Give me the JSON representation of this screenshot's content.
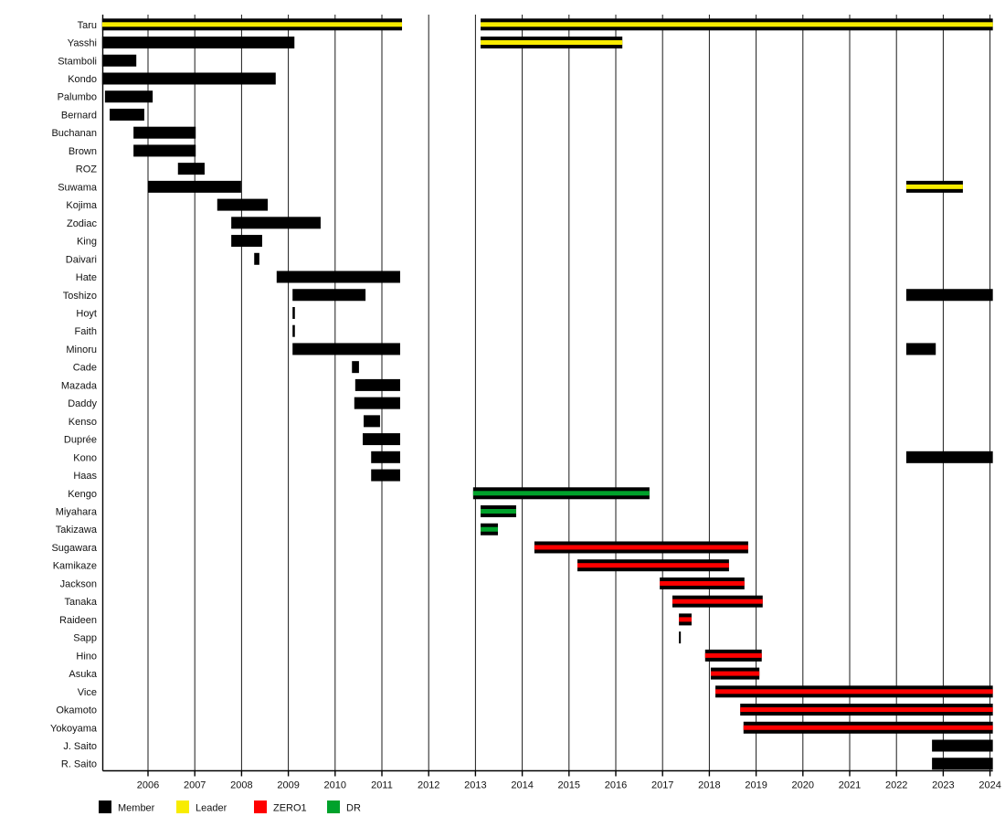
{
  "page": {
    "background": "#ffffff"
  },
  "colors": {
    "member": "#000000",
    "leader": "#f8ec00",
    "zero1": "#ff0000",
    "dr": "#00a22b",
    "axis": "#000000",
    "grid": "#1a1a1a",
    "background": "#ffffff"
  },
  "legend": {
    "position": "bottom-left",
    "items": [
      {
        "label": "Member",
        "type": "member"
      },
      {
        "label": "Leader",
        "type": "leader"
      },
      {
        "label": "ZERO1",
        "type": "zero1"
      },
      {
        "label": "DR",
        "type": "dr"
      }
    ]
  },
  "chart_data": {
    "type": "bar",
    "variant": "gantt-membership-timeline",
    "title": "",
    "xlabel": "",
    "ylabel": "",
    "grid": true,
    "x_axis": {
      "min": 2005.02,
      "max": 2024.06,
      "tick_years": [
        2006,
        2007,
        2008,
        2009,
        2010,
        2011,
        2012,
        2013,
        2014,
        2015,
        2016,
        2017,
        2018,
        2019,
        2020,
        2021,
        2022,
        2023,
        2024
      ]
    },
    "categories": [
      "Taru",
      "Yasshi",
      "Stamboli",
      "Kondo",
      "Palumbo",
      "Bernard",
      "Buchanan",
      "Brown",
      "ROZ",
      "Suwama",
      "Kojima",
      "Zodiac",
      "King",
      "Daivari",
      "Hate",
      "Toshizo",
      "Hoyt",
      "Faith",
      "Minoru",
      "Cade",
      "Mazada",
      "Daddy",
      "Kenso",
      "Duprée",
      "Kono",
      "Haas",
      "Kengo",
      "Miyahara",
      "Takizawa",
      "Sugawara",
      "Kamikaze",
      "Jackson",
      "Tanaka",
      "Raideen",
      "Sapp",
      "Hino",
      "Asuka",
      "Vice",
      "Okamoto",
      "Yokoyama",
      "J. Saito",
      "R. Saito"
    ],
    "rows": [
      {
        "name": "Taru",
        "segments": [
          {
            "start": 2005.02,
            "end": 2011.43,
            "type": "leader"
          },
          {
            "start": 2013.11,
            "end": 2024.06,
            "type": "leader"
          }
        ]
      },
      {
        "name": "Yasshi",
        "segments": [
          {
            "start": 2005.02,
            "end": 2009.13,
            "type": "member"
          },
          {
            "start": 2013.11,
            "end": 2016.14,
            "type": "leader"
          }
        ]
      },
      {
        "name": "Stamboli",
        "segments": [
          {
            "start": 2005.02,
            "end": 2005.75,
            "type": "member"
          }
        ]
      },
      {
        "name": "Kondo",
        "segments": [
          {
            "start": 2005.02,
            "end": 2008.73,
            "type": "member"
          }
        ]
      },
      {
        "name": "Palumbo",
        "segments": [
          {
            "start": 2005.08,
            "end": 2006.1,
            "type": "member"
          }
        ]
      },
      {
        "name": "Bernard",
        "segments": [
          {
            "start": 2005.18,
            "end": 2005.92,
            "type": "member"
          }
        ]
      },
      {
        "name": "Buchanan",
        "segments": [
          {
            "start": 2005.69,
            "end": 2007.02,
            "type": "member"
          }
        ]
      },
      {
        "name": "Brown",
        "segments": [
          {
            "start": 2005.69,
            "end": 2007.02,
            "type": "member"
          }
        ]
      },
      {
        "name": "ROZ",
        "segments": [
          {
            "start": 2006.64,
            "end": 2007.21,
            "type": "member"
          }
        ]
      },
      {
        "name": "Suwama",
        "segments": [
          {
            "start": 2006.0,
            "end": 2007.99,
            "type": "member"
          },
          {
            "start": 2022.21,
            "end": 2023.42,
            "type": "leader"
          }
        ]
      },
      {
        "name": "Kojima",
        "segments": [
          {
            "start": 2007.48,
            "end": 2008.56,
            "type": "member"
          }
        ]
      },
      {
        "name": "Zodiac",
        "segments": [
          {
            "start": 2007.78,
            "end": 2009.69,
            "type": "member"
          }
        ]
      },
      {
        "name": "King",
        "segments": [
          {
            "start": 2007.78,
            "end": 2008.44,
            "type": "member"
          }
        ]
      },
      {
        "name": "Daivari",
        "segments": [
          {
            "start": 2008.27,
            "end": 2008.38,
            "type": "member"
          }
        ]
      },
      {
        "name": "Hate",
        "segments": [
          {
            "start": 2008.75,
            "end": 2011.39,
            "type": "member"
          }
        ]
      },
      {
        "name": "Toshizo",
        "segments": [
          {
            "start": 2009.09,
            "end": 2010.65,
            "type": "member"
          },
          {
            "start": 2022.21,
            "end": 2024.06,
            "type": "member"
          }
        ]
      },
      {
        "name": "Hoyt",
        "segments": [
          {
            "start": 2009.09,
            "end": 2009.14,
            "type": "member"
          }
        ]
      },
      {
        "name": "Faith",
        "segments": [
          {
            "start": 2009.09,
            "end": 2009.14,
            "type": "member"
          }
        ]
      },
      {
        "name": "Minoru",
        "segments": [
          {
            "start": 2009.09,
            "end": 2011.39,
            "type": "member"
          },
          {
            "start": 2022.21,
            "end": 2022.84,
            "type": "member"
          }
        ]
      },
      {
        "name": "Cade",
        "segments": [
          {
            "start": 2010.36,
            "end": 2010.51,
            "type": "member"
          }
        ]
      },
      {
        "name": "Mazada",
        "segments": [
          {
            "start": 2010.43,
            "end": 2011.39,
            "type": "member"
          }
        ]
      },
      {
        "name": "Daddy",
        "segments": [
          {
            "start": 2010.41,
            "end": 2011.39,
            "type": "member"
          }
        ]
      },
      {
        "name": "Kenso",
        "segments": [
          {
            "start": 2010.61,
            "end": 2010.96,
            "type": "member"
          }
        ]
      },
      {
        "name": "Duprée",
        "segments": [
          {
            "start": 2010.59,
            "end": 2011.39,
            "type": "member"
          }
        ]
      },
      {
        "name": "Kono",
        "segments": [
          {
            "start": 2010.77,
            "end": 2011.39,
            "type": "member"
          },
          {
            "start": 2022.21,
            "end": 2024.06,
            "type": "member"
          }
        ]
      },
      {
        "name": "Haas",
        "segments": [
          {
            "start": 2010.77,
            "end": 2011.39,
            "type": "member"
          }
        ]
      },
      {
        "name": "Kengo",
        "segments": [
          {
            "start": 2012.95,
            "end": 2016.72,
            "type": "dr"
          }
        ]
      },
      {
        "name": "Miyahara",
        "segments": [
          {
            "start": 2013.11,
            "end": 2013.87,
            "type": "dr"
          }
        ]
      },
      {
        "name": "Takizawa",
        "segments": [
          {
            "start": 2013.11,
            "end": 2013.48,
            "type": "dr"
          }
        ]
      },
      {
        "name": "Sugawara",
        "segments": [
          {
            "start": 2014.26,
            "end": 2018.83,
            "type": "zero1"
          }
        ]
      },
      {
        "name": "Kamikaze",
        "segments": [
          {
            "start": 2015.18,
            "end": 2018.42,
            "type": "zero1"
          }
        ]
      },
      {
        "name": "Jackson",
        "segments": [
          {
            "start": 2016.94,
            "end": 2018.75,
            "type": "zero1"
          }
        ]
      },
      {
        "name": "Tanaka",
        "segments": [
          {
            "start": 2017.21,
            "end": 2019.14,
            "type": "zero1"
          }
        ]
      },
      {
        "name": "Raideen",
        "segments": [
          {
            "start": 2017.35,
            "end": 2017.62,
            "type": "zero1"
          }
        ]
      },
      {
        "name": "Sapp",
        "segments": [
          {
            "start": 2017.35,
            "end": 2017.39,
            "type": "member"
          }
        ]
      },
      {
        "name": "Hino",
        "segments": [
          {
            "start": 2017.91,
            "end": 2019.12,
            "type": "zero1"
          }
        ]
      },
      {
        "name": "Asuka",
        "segments": [
          {
            "start": 2018.03,
            "end": 2019.07,
            "type": "zero1"
          }
        ]
      },
      {
        "name": "Vice",
        "segments": [
          {
            "start": 2018.13,
            "end": 2024.06,
            "type": "zero1"
          }
        ]
      },
      {
        "name": "Okamoto",
        "segments": [
          {
            "start": 2018.66,
            "end": 2024.06,
            "type": "zero1"
          }
        ]
      },
      {
        "name": "Yokoyama",
        "segments": [
          {
            "start": 2018.73,
            "end": 2024.06,
            "type": "zero1"
          }
        ]
      },
      {
        "name": "J. Saito",
        "segments": [
          {
            "start": 2022.76,
            "end": 2024.06,
            "type": "member"
          }
        ]
      },
      {
        "name": "R. Saito",
        "segments": [
          {
            "start": 2022.76,
            "end": 2024.06,
            "type": "member"
          }
        ]
      }
    ]
  }
}
